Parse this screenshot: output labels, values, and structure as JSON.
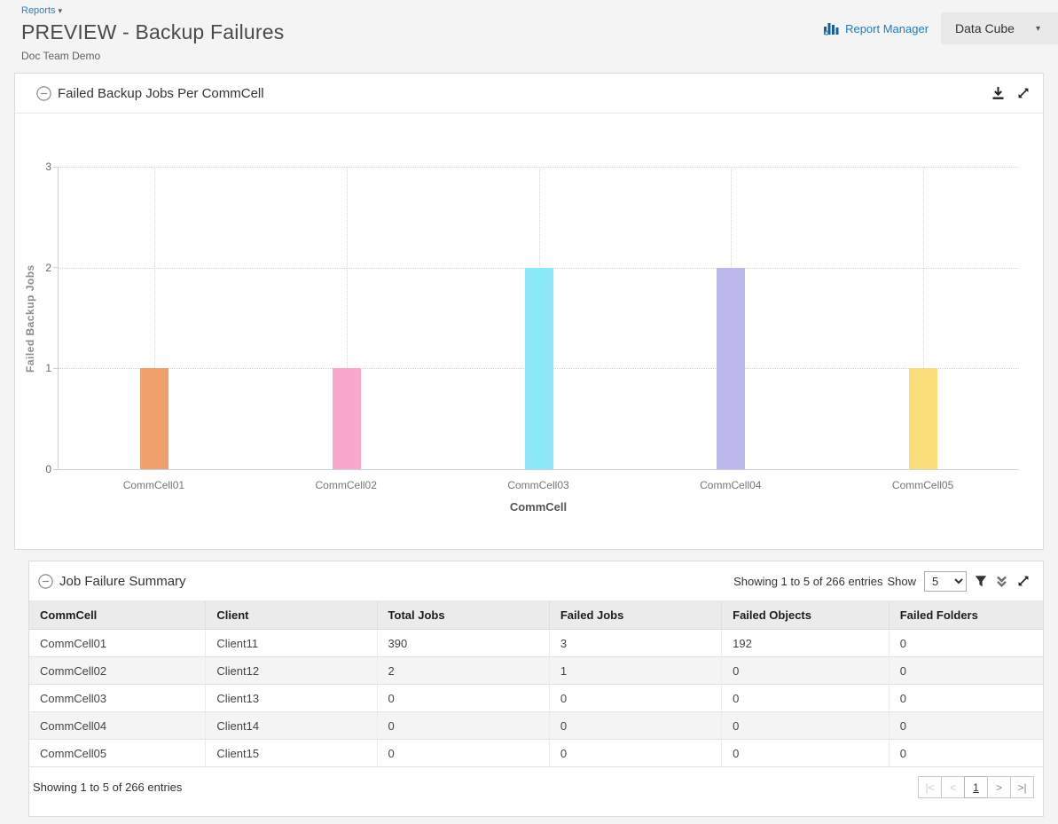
{
  "header": {
    "breadcrumb": "Reports",
    "breadcrumb_caret": "▾",
    "title": "PREVIEW - Backup Failures",
    "subtitle": "Doc Team Demo",
    "report_manager": "Report Manager",
    "data_cube": "Data Cube",
    "data_cube_caret": "▾"
  },
  "colors": {
    "link_blue": "#2e7fc1",
    "icon_blue": "#1b7fc4",
    "axis_line": "#c7d3dc",
    "grid_dotted": "#d6d6d6"
  },
  "chart_panel": {
    "title": "Failed Backup Jobs Per CommCell",
    "icons": [
      "collapse-icon",
      "download-icon",
      "expand-icon"
    ]
  },
  "chart_data": {
    "type": "bar",
    "title": "Failed Backup Jobs Per CommCell",
    "categories": [
      "CommCell01",
      "CommCell02",
      "CommCell03",
      "CommCell04",
      "CommCell05"
    ],
    "values": [
      1,
      1,
      2,
      2,
      1
    ],
    "bar_colors": [
      "#eda06b",
      "#f9a8cd",
      "#8de9f8",
      "#bdb8ec",
      "#fade79"
    ],
    "xlabel": "CommCell",
    "ylabel": "Failed Backup Jobs",
    "ylim": [
      0,
      3
    ],
    "yticks": [
      0,
      1,
      2,
      3
    ],
    "grid": "dotted horizontal at each y tick, dotted vertical at each category center",
    "legend": "none"
  },
  "table_panel": {
    "title": "Job Failure Summary",
    "icons": [
      "collapse-icon",
      "filter-icon",
      "double-chevron-down-icon",
      "expand-icon"
    ],
    "toolbar": {
      "showing_text": "Showing 1 to 5 of 266 entries",
      "show_label": "Show",
      "page_size_value": "5"
    },
    "columns": [
      "CommCell",
      "Client",
      "Total Jobs",
      "Failed Jobs",
      "Failed Objects",
      "Failed Folders"
    ],
    "rows": [
      [
        "CommCell01",
        "Client11",
        "390",
        "3",
        "192",
        "0"
      ],
      [
        "CommCell02",
        "Client12",
        "2",
        "1",
        "0",
        "0"
      ],
      [
        "CommCell03",
        "Client13",
        "0",
        "0",
        "0",
        "0"
      ],
      [
        "CommCell04",
        "Client14",
        "0",
        "0",
        "0",
        "0"
      ],
      [
        "CommCell05",
        "Client15",
        "0",
        "0",
        "0",
        "0"
      ]
    ],
    "footer": {
      "showing_text": "Showing 1 to 5 of 266 entries"
    },
    "pagination": [
      {
        "name": "first-page-button",
        "label": "|<",
        "state": "disabled"
      },
      {
        "name": "prev-page-button",
        "label": "<",
        "state": "disabled"
      },
      {
        "name": "page-1-button",
        "label": "1",
        "state": "current"
      },
      {
        "name": "next-page-button",
        "label": ">",
        "state": "enabled"
      },
      {
        "name": "last-page-button",
        "label": ">|",
        "state": "enabled"
      }
    ]
  }
}
